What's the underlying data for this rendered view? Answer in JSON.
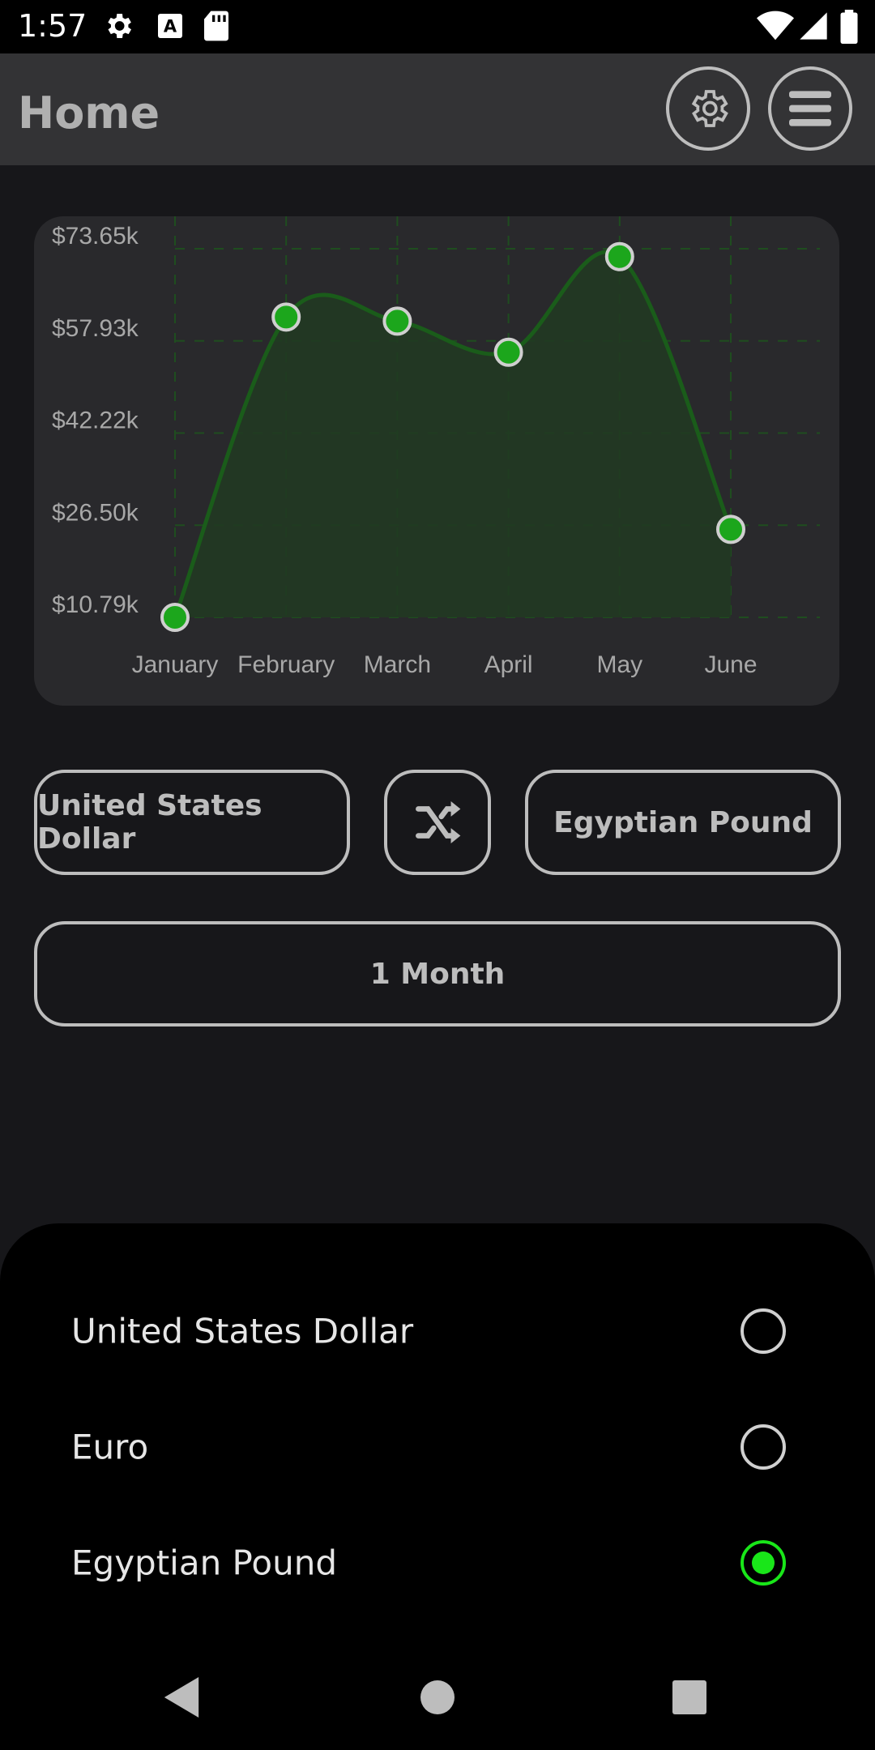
{
  "status_bar": {
    "time": "1:57",
    "icons": [
      "gear-icon",
      "text-a-icon",
      "sd-card-icon",
      "wifi-icon",
      "signal-icon",
      "battery-icon"
    ]
  },
  "app_bar": {
    "title": "Home",
    "actions": [
      "settings-icon",
      "menu-icon"
    ]
  },
  "chart_data": {
    "type": "area",
    "categories": [
      "January",
      "February",
      "March",
      "April",
      "May",
      "June"
    ],
    "values": [
      10790,
      62000,
      61300,
      56000,
      72300,
      25800
    ],
    "y_tick_labels": [
      "$73.65k",
      "$57.93k",
      "$42.22k",
      "$26.50k",
      "$10.79k"
    ],
    "y_ticks": [
      73650,
      57930,
      42220,
      26500,
      10790
    ],
    "ylim": [
      10790,
      73650
    ],
    "grid": true,
    "line_color": "#1a5c1a",
    "point_color": "#1ca61c",
    "point_border": "#cfcfcf"
  },
  "converter": {
    "from_currency": "United States Dollar",
    "swap_icon": "shuffle-icon",
    "to_currency": "Egyptian Pound",
    "period": "1 Month"
  },
  "currency_sheet": {
    "options": [
      {
        "label": "United States Dollar",
        "selected": false
      },
      {
        "label": "Euro",
        "selected": false
      },
      {
        "label": "Egyptian Pound",
        "selected": true
      }
    ]
  },
  "navigation": [
    "back-icon",
    "home-icon",
    "recents-icon"
  ],
  "colors": {
    "accent": "#19e619",
    "background": "#17171a",
    "card": "#29292c",
    "app_bar": "#333335"
  }
}
